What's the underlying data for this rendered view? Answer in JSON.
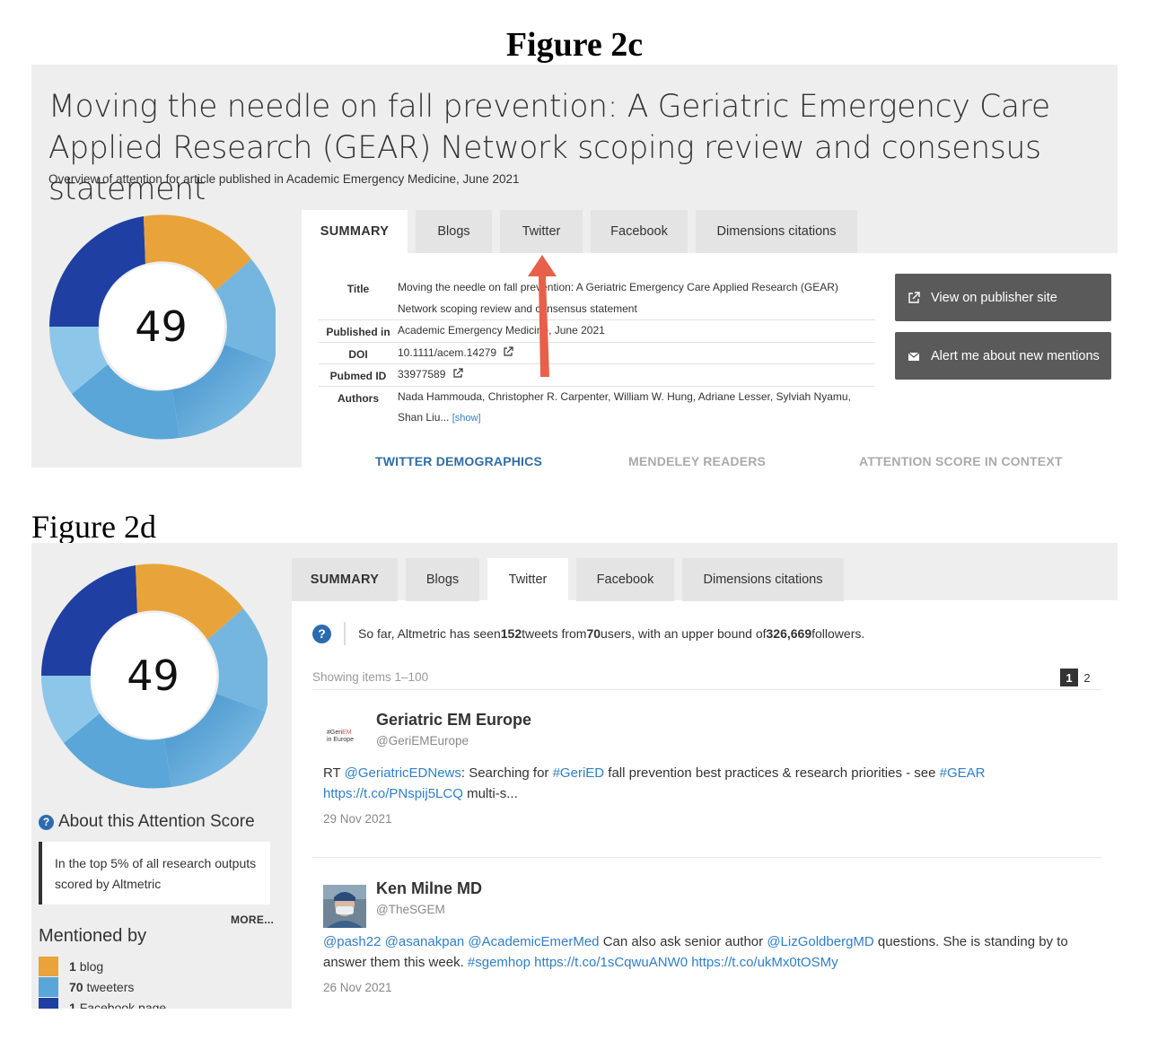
{
  "figures": {
    "c_label": "Figure 2c",
    "d_label": "Figure 2d"
  },
  "article": {
    "title": "Moving the needle on fall prevention: A Geriatric Emergency Care Applied Research (GEAR) Network scoping review and consensus statement",
    "subtitle": "Overview of attention for article published in Academic Emergency Medicine, June 2021"
  },
  "score": "49",
  "tabs": [
    "SUMMARY",
    "Blogs",
    "Twitter",
    "Facebook",
    "Dimensions citations"
  ],
  "meta": {
    "title_label": "Title",
    "title_value": "Moving the needle on fall prevention: A Geriatric Emergency Care Applied Research (GEAR) Network scoping review and consensus statement",
    "published_label": "Published in",
    "published_value": "Academic Emergency Medicine, June 2021",
    "doi_label": "DOI",
    "doi_value": "10.1111/acem.14279",
    "pubmed_label": "Pubmed ID",
    "pubmed_value": "33977589",
    "authors_label": "Authors",
    "authors_value": "Nada Hammouda, Christopher R. Carpenter, William W. Hung, Adriane Lesser, Sylviah Nyamu, Shan Liu...",
    "show_label": "[show]"
  },
  "buttons": {
    "publisher": "View on publisher site",
    "alert": "Alert me about new mentions"
  },
  "bottom_tabs": [
    "TWITTER DEMOGRAPHICS",
    "MENDELEY READERS",
    "ATTENTION SCORE IN CONTEXT"
  ],
  "colors": {
    "orange": "#e8a33a",
    "lightblue": "#74b6e0",
    "midblue": "#3f8fc9",
    "darkblue": "#1f3fa3",
    "link": "#2f7ec9",
    "arrow": "#e8604a"
  },
  "sidebar": {
    "about_title": "About this Attention Score",
    "top5_text": "In the top 5% of all research outputs scored by Altmetric",
    "more": "MORE...",
    "mentioned_title": "Mentioned by",
    "mentions": [
      {
        "count": "1",
        "label": "blog"
      },
      {
        "count": "70",
        "label": "tweeters"
      },
      {
        "count": "1",
        "label": "Facebook page"
      }
    ]
  },
  "twitter": {
    "info_prefix": "So far, Altmetric has seen ",
    "tweets": "152",
    "info_mid1": " tweets from ",
    "users": "70",
    "info_mid2": " users, with an upper bound of ",
    "followers": "326,669",
    "info_suffix": " followers.",
    "showing": "Showing items 1–100",
    "pages": [
      "1",
      "2"
    ]
  },
  "tweets": [
    {
      "name": "Geriatric EM Europe",
      "handle": "@GeriEMEurope",
      "avatar_text_a": "#GeriEM",
      "avatar_text_b": "in Europe",
      "rt": "RT ",
      "mention1": "@GeriatricEDNews",
      "text1": ": Searching for ",
      "hashtag1": "#GeriED",
      "text2": " fall prevention best practices & research priorities - see ",
      "hashtag2": "#GEAR",
      "link1": "https://t.co/PNspij5LCQ",
      "text3": " multi-s...",
      "date": "29 Nov 2021"
    },
    {
      "name": "Ken Milne MD",
      "handle": "@TheSGEM",
      "mention1": "@pash22",
      "mention2": "@asanakpan",
      "mention3": "@AcademicEmerMed",
      "text1": " Can also ask senior author ",
      "mention4": "@LizGoldbergMD",
      "text2": " questions. She is standing by to answer them this week. ",
      "hashtag1": "#sgemhop",
      "link1": "https://t.co/1sCqwuANW0",
      "link2": "https://t.co/ukMx0tOSMy",
      "date": "26 Nov 2021"
    }
  ]
}
